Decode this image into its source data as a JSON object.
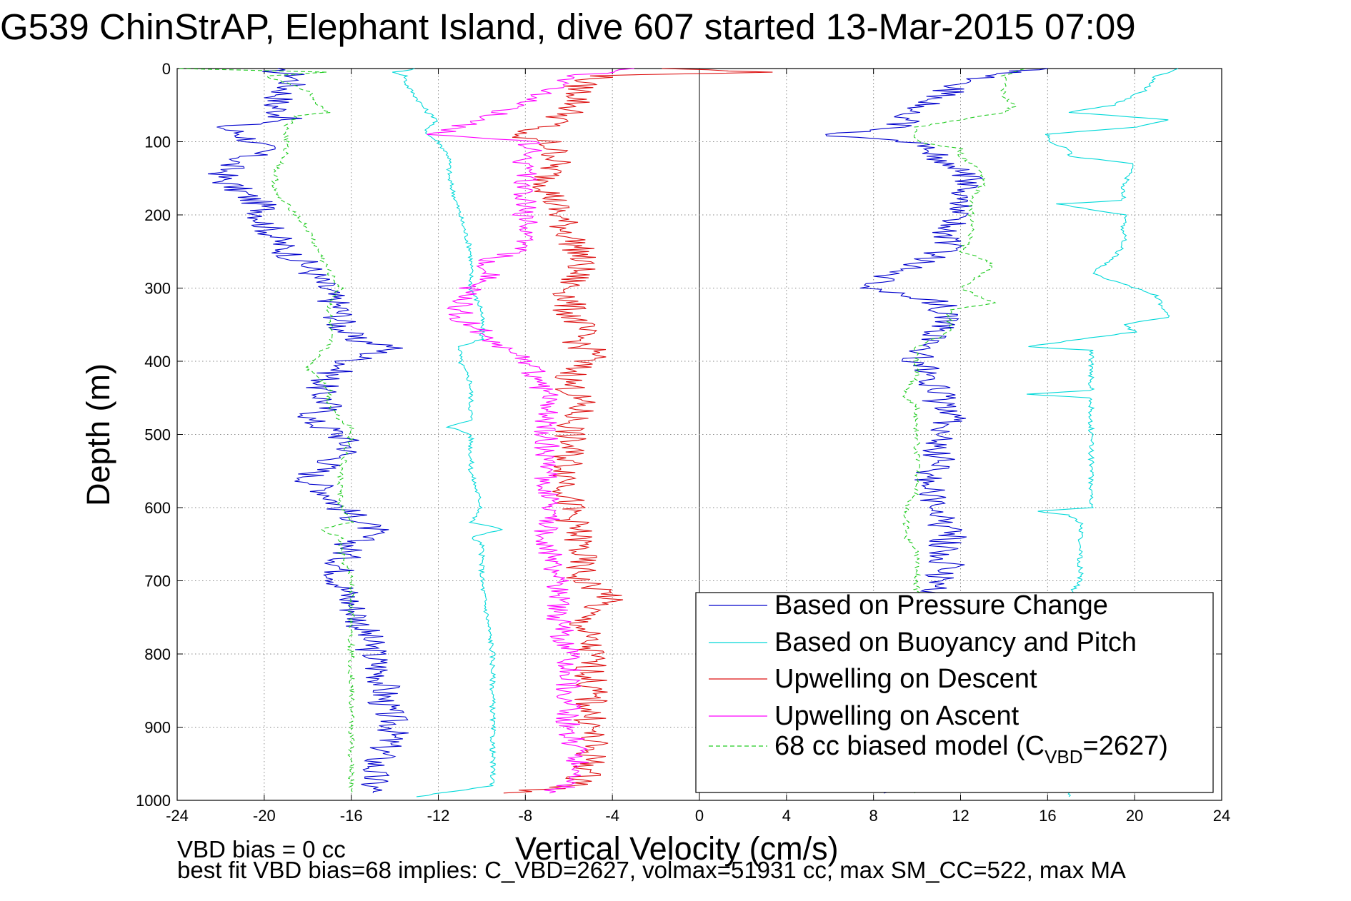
{
  "title": "G539 ChinStrAP, Elephant Island, dive 607 started 13-Mar-2015 07:09",
  "notes": {
    "line1": "VBD bias = 0 cc",
    "line2": "best fit VBD bias=68 implies: C_VBD=2627, volmax=51931 cc, max SM_CC=522, max MA"
  },
  "chart_data": {
    "type": "line",
    "title": "G539 ChinStrAP, Elephant Island, dive 607 started 13-Mar-2015 07:09",
    "xlabel": "Vertical Velocity (cm/s)",
    "ylabel": "Depth (m)",
    "xlim": [
      -24,
      24
    ],
    "ylim": [
      0,
      1000
    ],
    "y_reversed": true,
    "grid": true,
    "xticks": [
      "-24",
      "-20",
      "-16",
      "-12",
      "-8",
      "-4",
      "0",
      "4",
      "8",
      "12",
      "16",
      "20",
      "24"
    ],
    "yticks": [
      "0",
      "100",
      "200",
      "300",
      "400",
      "500",
      "600",
      "700",
      "800",
      "900",
      "1000"
    ],
    "legend_placement": "bottom-right",
    "series": [
      {
        "name": "Based on Pressure Change",
        "color": "#0000cc",
        "style": "solid",
        "segments": [
          {
            "depth": [
              0,
              10,
              30,
              50,
              70,
              80,
              90,
              110,
              130,
              150,
              170,
              190,
              210,
              230,
              250,
              270,
              290,
              310,
              330,
              350,
              370,
              380,
              400,
              420,
              440,
              460,
              480,
              500,
              520,
              540,
              560,
              580,
              600,
              620,
              630,
              650,
              680,
              700,
              730,
              760,
              800,
              840,
              870,
              900,
              930,
              960,
              990
            ],
            "values": [
              -20,
              -18.5,
              -19,
              -19.5,
              -19,
              -22,
              -21,
              -20,
              -21.5,
              -22,
              -21,
              -20,
              -20,
              -19.5,
              -19,
              -18,
              -17.5,
              -17,
              -16.5,
              -16.5,
              -16,
              -14,
              -16,
              -17,
              -17.5,
              -17,
              -18,
              -16.5,
              -16,
              -17,
              -18,
              -17,
              -16.5,
              -15.5,
              -15,
              -16,
              -16.5,
              -16.5,
              -16,
              -15.5,
              -15,
              -14.5,
              -14.5,
              -14,
              -14.5,
              -15,
              -15
            ]
          },
          {
            "depth": [
              990,
              985,
              970,
              960,
              940,
              920,
              900,
              880,
              860,
              840,
              820,
              800,
              780,
              760,
              740,
              720,
              700,
              680,
              660,
              640,
              620,
              600,
              580,
              560,
              540,
              520,
              500,
              480,
              460,
              440,
              420,
              400,
              380,
              360,
              340,
              320,
              305,
              300,
              280,
              260,
              240,
              220,
              200,
              180,
              160,
              140,
              120,
              100,
              92,
              80,
              60,
              40,
              20,
              10,
              5,
              0
            ],
            "values": [
              9,
              7,
              10.5,
              11,
              11.5,
              11.5,
              11,
              11.5,
              11,
              11.5,
              11,
              11.5,
              11,
              11.5,
              11,
              11,
              11,
              11.5,
              11,
              11.5,
              11,
              11,
              10.5,
              10.5,
              11,
              11,
              11,
              11.5,
              11,
              11,
              10.5,
              10,
              10,
              11,
              11.5,
              11,
              8.5,
              8,
              9,
              10.5,
              11.5,
              11.5,
              12,
              12,
              12.5,
              12,
              11,
              9.5,
              5.5,
              9,
              10,
              11,
              12,
              13,
              14,
              16
            ]
          }
        ]
      },
      {
        "name": "Based on Buoyancy and Pitch",
        "color": "#00d8d8",
        "style": "solid",
        "segments": [
          {
            "depth": [
              0,
              5,
              10,
              20,
              40,
              60,
              70,
              80,
              90,
              100,
              120,
              150,
              200,
              250,
              300,
              330,
              350,
              370,
              380,
              400,
              430,
              460,
              480,
              490,
              500,
              550,
              600,
              620,
              630,
              640,
              650,
              700,
              800,
              900,
              980,
              995
            ],
            "values": [
              -13,
              -14,
              -13.5,
              -13.5,
              -13,
              -12.5,
              -12,
              -12.5,
              -12.5,
              -12,
              -11.5,
              -11.5,
              -11,
              -10.5,
              -10.5,
              -10,
              -10,
              -10,
              -11,
              -11,
              -10.5,
              -10.5,
              -10.5,
              -11.5,
              -10.5,
              -10.5,
              -10,
              -10.5,
              -9,
              -10.5,
              -10,
              -10,
              -9.5,
              -9.5,
              -9.5,
              -13
            ]
          },
          {
            "depth": [
              995,
              980,
              900,
              800,
              720,
              700,
              650,
              620,
              610,
              605,
              600,
              550,
              500,
              450,
              445,
              440,
              420,
              400,
              385,
              380,
              360,
              350,
              340,
              310,
              300,
              285,
              280,
              260,
              240,
              200,
              185,
              180,
              160,
              130,
              120,
              110,
              100,
              90,
              80,
              70,
              60,
              50,
              30,
              10,
              0
            ],
            "values": [
              17,
              17,
              17,
              17,
              17,
              17.5,
              17.5,
              17.5,
              17,
              15.5,
              18,
              18,
              18,
              18,
              15,
              18,
              18,
              18,
              18,
              15,
              20,
              19.5,
              21.5,
              21,
              20,
              18.5,
              18,
              19,
              19.5,
              19.5,
              16.5,
              19.5,
              19.5,
              20,
              17,
              17,
              16,
              16,
              20,
              21.5,
              17,
              19,
              20.5,
              21,
              22
            ]
          }
        ]
      },
      {
        "name": "Upwelling on Descent",
        "color": "#dd1111",
        "style": "solid",
        "segments": [
          {
            "depth": [
              0,
              5,
              10,
              20,
              40,
              60,
              80,
              90,
              100,
              120,
              150,
              200,
              250,
              270,
              300,
              330,
              350,
              380,
              390,
              400,
              430,
              460,
              500,
              550,
              600,
              650,
              700,
              720,
              750,
              800,
              850,
              900,
              950,
              980,
              990
            ],
            "values": [
              -1.5,
              3,
              -4.5,
              -5.5,
              -5.5,
              -6,
              -7,
              -9,
              -7,
              -6.5,
              -7,
              -6.5,
              -5.5,
              -5.5,
              -6,
              -6,
              -5.5,
              -5.5,
              -4.5,
              -5.5,
              -6,
              -5.5,
              -6,
              -6,
              -6,
              -5.5,
              -5.5,
              -4,
              -5.5,
              -5,
              -5,
              -5,
              -5,
              -5.5,
              -9
            ]
          }
        ]
      },
      {
        "name": "Upwelling on Ascent",
        "color": "#ff00ff",
        "style": "solid",
        "segments": [
          {
            "depth": [
              990,
              980,
              950,
              900,
              850,
              800,
              750,
              700,
              650,
              600,
              550,
              500,
              450,
              420,
              400,
              380,
              360,
              340,
              320,
              300,
              280,
              270,
              250,
              220,
              200,
              180,
              150,
              120,
              110,
              100,
              90,
              70,
              50,
              30,
              10,
              5,
              0
            ],
            "values": [
              -7,
              -6,
              -5.5,
              -6,
              -6,
              -6,
              -6.5,
              -6.5,
              -7,
              -7,
              -7,
              -7,
              -7,
              -7.5,
              -8,
              -9,
              -10,
              -11,
              -11,
              -10.5,
              -9.5,
              -10.5,
              -8.5,
              -8,
              -8,
              -8,
              -8,
              -8,
              -7.5,
              -8,
              -12,
              -10,
              -8.5,
              -7,
              -6,
              -4,
              -3
            ]
          }
        ]
      },
      {
        "name": "68 cc biased model (C",
        "name_sub": "VBD",
        "name_suffix": "=2627)",
        "color": "#22cc22",
        "style": "dashed",
        "segments": [
          {
            "depth": [
              0,
              5,
              10,
              30,
              50,
              60,
              65,
              80,
              100,
              120,
              140,
              170,
              200,
              220,
              250,
              280,
              300,
              320,
              350,
              380,
              390,
              410,
              420,
              440,
              460,
              480,
              490,
              500,
              550,
              600,
              620,
              630,
              640,
              660,
              700,
              750,
              800,
              850,
              900,
              950,
              990
            ],
            "values": [
              -24,
              -17,
              -20,
              -18,
              -17.5,
              -17,
              -18.5,
              -19,
              -19,
              -19,
              -19.5,
              -19.5,
              -18.5,
              -18,
              -17.5,
              -17,
              -16.5,
              -17,
              -17,
              -17,
              -17.5,
              -18,
              -17.5,
              -17,
              -17,
              -16.5,
              -16,
              -16,
              -16.5,
              -16.5,
              -16,
              -17.5,
              -16.5,
              -16.5,
              -16,
              -16,
              -16,
              -16,
              -16,
              -16,
              -16
            ]
          },
          {
            "depth": [
              990,
              950,
              900,
              850,
              800,
              750,
              720,
              700,
              690,
              680,
              660,
              640,
              630,
              620,
              610,
              600,
              580,
              560,
              550,
              520,
              500,
              480,
              460,
              450,
              440,
              420,
              400,
              380,
              360,
              350,
              340,
              330,
              320,
              300,
              270,
              260,
              250,
              230,
              200,
              180,
              160,
              140,
              130,
              120,
              110,
              100,
              90,
              80,
              60,
              50,
              40,
              30,
              20,
              10,
              5,
              0
            ],
            "values": [
              10,
              10,
              10,
              10,
              10,
              10,
              10,
              10,
              10,
              10,
              10,
              9.5,
              9.5,
              9.5,
              9.5,
              9.5,
              10,
              10,
              10,
              10,
              10,
              10,
              10,
              9.5,
              9.5,
              10,
              10,
              10,
              11.5,
              11.5,
              11.5,
              11.5,
              13.5,
              12,
              13.5,
              13,
              12,
              12.5,
              12.5,
              12.5,
              13,
              13,
              12.5,
              12,
              12,
              10,
              10,
              10,
              14,
              14.5,
              14,
              14,
              14,
              14,
              14.5,
              15
            ]
          }
        ]
      }
    ]
  }
}
